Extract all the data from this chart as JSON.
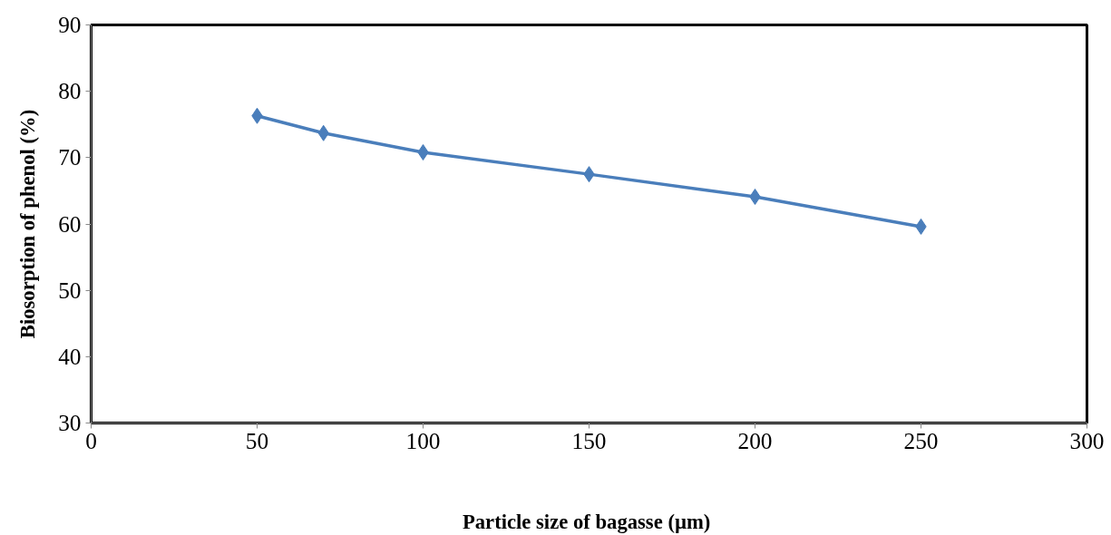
{
  "chart_data": {
    "type": "line",
    "xlabel": "Particle size  of bagasse (µm)",
    "ylabel": "Biosorption of phenol (%)",
    "x": [
      50,
      70,
      100,
      150,
      200,
      250
    ],
    "series": [
      {
        "color": "#4a7ebb",
        "values": [
          76.3,
          73.7,
          70.8,
          67.5,
          64.1,
          59.6
        ]
      }
    ],
    "xlim": [
      0,
      300
    ],
    "xticks": [
      0,
      50,
      100,
      150,
      200,
      250,
      300
    ],
    "ylim": [
      30,
      90
    ],
    "yticks": [
      30,
      40,
      50,
      60,
      70,
      80,
      90
    ],
    "marker": "diamond",
    "line_style": "solid"
  }
}
